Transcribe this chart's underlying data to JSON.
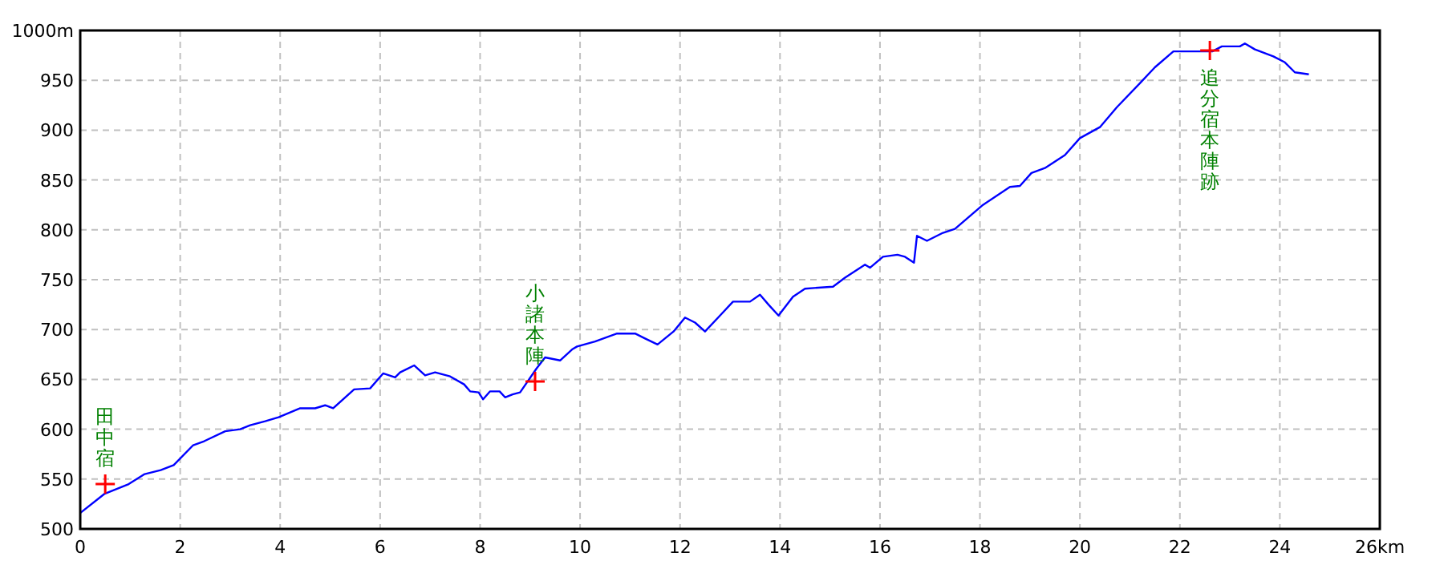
{
  "chart_data": {
    "type": "line",
    "x": [
      0,
      0.48,
      0.97,
      1.29,
      1.61,
      1.87,
      2.26,
      2.48,
      2.9,
      3.2,
      3.4,
      3.7,
      3.97,
      4.4,
      4.7,
      4.9,
      5.06,
      5.48,
      5.8,
      6.06,
      6.3,
      6.4,
      6.68,
      6.9,
      7.1,
      7.4,
      7.68,
      7.8,
      7.97,
      8.06,
      8.2,
      8.39,
      8.5,
      8.65,
      8.8,
      9.13,
      9.3,
      9.5,
      9.6,
      9.84,
      9.94,
      10.3,
      10.74,
      11.1,
      11.3,
      11.55,
      11.87,
      12.1,
      12.3,
      12.5,
      12.8,
      13.06,
      13.4,
      13.6,
      13.77,
      13.97,
      14.26,
      14.5,
      15.06,
      15.3,
      15.7,
      15.8,
      16.06,
      16.35,
      16.5,
      16.68,
      16.74,
      16.94,
      17.26,
      17.5,
      18.06,
      18.6,
      18.8,
      19.03,
      19.3,
      19.7,
      20.0,
      20.4,
      20.74,
      21.2,
      21.5,
      21.87,
      22.26,
      22.65,
      22.84,
      23.2,
      23.3,
      23.5,
      23.87,
      24.1,
      24.3,
      24.58
    ],
    "series": [
      {
        "color": "#0000ff",
        "values": [
          516,
          535,
          545,
          555,
          559,
          564,
          584,
          588,
          598,
          600,
          604,
          608,
          612,
          621,
          621,
          624,
          621,
          640,
          641,
          656,
          652,
          657,
          664,
          654,
          657,
          653,
          645,
          638,
          637,
          630,
          638,
          638,
          632,
          635,
          637,
          661,
          672,
          670,
          669,
          680,
          683,
          688,
          696,
          696,
          691,
          685,
          698,
          712,
          707,
          698,
          714,
          728,
          728,
          735,
          725,
          714,
          733,
          741,
          743,
          752,
          765,
          762,
          773,
          775,
          773,
          767,
          794,
          789,
          797,
          801,
          825,
          843,
          844,
          857,
          862,
          875,
          892,
          903,
          923,
          947,
          963,
          979,
          979,
          979,
          984,
          984,
          987,
          981,
          974,
          968,
          958,
          956
        ]
      }
    ],
    "xlim": [
      0,
      26
    ],
    "ylim": [
      500,
      1000
    ],
    "xticks": [
      0,
      2,
      4,
      6,
      8,
      10,
      12,
      14,
      16,
      18,
      20,
      22,
      24,
      {
        "value": 26,
        "label": "26km"
      }
    ],
    "yticks": [
      500,
      550,
      600,
      650,
      700,
      750,
      800,
      850,
      900,
      950,
      {
        "value": 1000,
        "label": "1000m"
      }
    ],
    "grid": true,
    "marker": "none",
    "line_style": "solid",
    "annotations": [
      {
        "text": "田中宿",
        "x": 0.5,
        "y": 545
      },
      {
        "text": "小諸本陣",
        "x": 9.1,
        "y": 648
      },
      {
        "text": "追分宿本陣跡",
        "x": 22.6,
        "y": 980
      }
    ]
  }
}
